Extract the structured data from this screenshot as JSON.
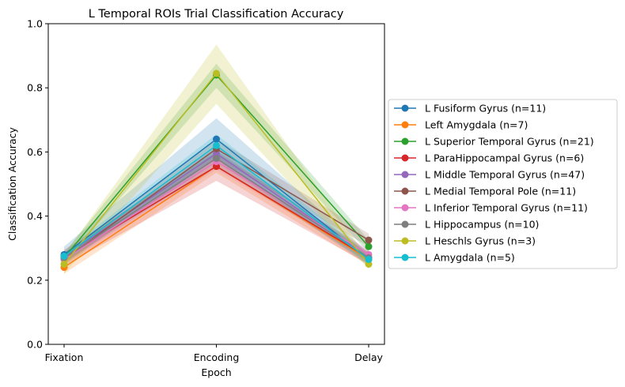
{
  "chart_data": {
    "type": "line",
    "title": "L Temporal ROIs Trial Classification Accuracy",
    "xlabel": "Epoch",
    "ylabel": "Classification Accuracy",
    "categories": [
      "Fixation",
      "Encoding",
      "Delay"
    ],
    "ylim": [
      0.0,
      1.0
    ],
    "yticks": [
      "0.0",
      "0.2",
      "0.4",
      "0.6",
      "0.8",
      "1.0"
    ],
    "grid": false,
    "legend_position": "right, outside plot",
    "series": [
      {
        "name": "L Fusiform Gyrus (n=11)",
        "color": "#1f77b4",
        "values": [
          0.28,
          0.64,
          0.265
        ],
        "lower": [
          0.255,
          0.575,
          0.245
        ],
        "upper": [
          0.305,
          0.705,
          0.285
        ]
      },
      {
        "name": "Left Amygdala (n=7)",
        "color": "#ff7f0e",
        "values": [
          0.24,
          0.555,
          0.265
        ],
        "lower": [
          0.22,
          0.535,
          0.245
        ],
        "upper": [
          0.26,
          0.575,
          0.285
        ]
      },
      {
        "name": "L Superior Temporal Gyrus (n=21)",
        "color": "#2ca02c",
        "values": [
          0.27,
          0.84,
          0.305
        ],
        "lower": [
          0.255,
          0.8,
          0.285
        ],
        "upper": [
          0.285,
          0.875,
          0.325
        ]
      },
      {
        "name": "L ParaHippocampal Gyrus (n=6)",
        "color": "#d62728",
        "values": [
          0.27,
          0.555,
          0.27
        ],
        "lower": [
          0.245,
          0.51,
          0.25
        ],
        "upper": [
          0.295,
          0.6,
          0.29
        ]
      },
      {
        "name": "L Middle Temporal Gyrus (n=47)",
        "color": "#9467bd",
        "values": [
          0.275,
          0.595,
          0.27
        ],
        "lower": [
          0.265,
          0.575,
          0.26
        ],
        "upper": [
          0.285,
          0.615,
          0.28
        ]
      },
      {
        "name": "L Medial Temporal Pole (n=11)",
        "color": "#8c564b",
        "values": [
          0.265,
          0.61,
          0.325
        ],
        "lower": [
          0.25,
          0.58,
          0.305
        ],
        "upper": [
          0.28,
          0.64,
          0.345
        ]
      },
      {
        "name": "L Inferior Temporal Gyrus (n=11)",
        "color": "#e377c2",
        "values": [
          0.265,
          0.57,
          0.28
        ],
        "lower": [
          0.25,
          0.545,
          0.265
        ],
        "upper": [
          0.28,
          0.595,
          0.295
        ]
      },
      {
        "name": "L Hippocampus (n=10)",
        "color": "#7f7f7f",
        "values": [
          0.27,
          0.58,
          0.27
        ],
        "lower": [
          0.255,
          0.555,
          0.255
        ],
        "upper": [
          0.285,
          0.605,
          0.285
        ]
      },
      {
        "name": "L Heschls Gyrus (n=3)",
        "color": "#bcbd22",
        "values": [
          0.25,
          0.845,
          0.25
        ],
        "lower": [
          0.22,
          0.75,
          0.235
        ],
        "upper": [
          0.28,
          0.935,
          0.265
        ]
      },
      {
        "name": "L Amygdala (n=5)",
        "color": "#17becf",
        "values": [
          0.275,
          0.62,
          0.265
        ],
        "lower": [
          0.26,
          0.585,
          0.25
        ],
        "upper": [
          0.29,
          0.655,
          0.28
        ]
      }
    ]
  }
}
